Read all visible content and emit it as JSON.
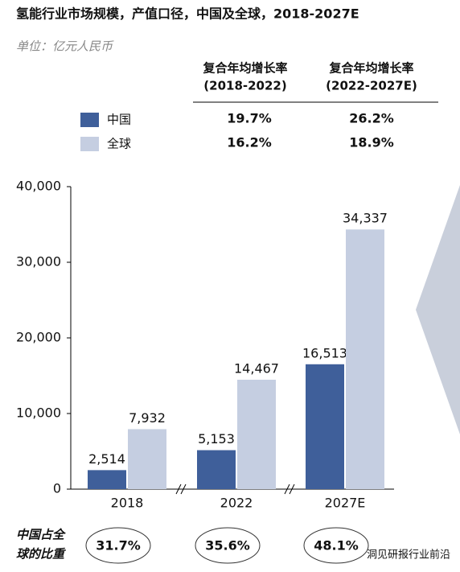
{
  "header": {
    "title": "氢能行业市场规模，产值口径，中国及全球，2018-2027E",
    "unit": "单位：亿元人民币"
  },
  "cagr": {
    "headers": [
      [
        "复合年均增长率",
        "(2018-2022)"
      ],
      [
        "复合年均增长率",
        "(2022-2027E)"
      ]
    ],
    "rows": [
      [
        "19.7%",
        "26.2%"
      ],
      [
        "16.2%",
        "18.9%"
      ]
    ]
  },
  "chart_data": {
    "type": "bar",
    "categories": [
      "2018",
      "2022",
      "2027E"
    ],
    "series": [
      {
        "name": "中国",
        "color": "#3f5f9a",
        "values": [
          2514,
          5153,
          16513
        ],
        "value_labels": [
          "2,514",
          "5,153",
          "16,513"
        ]
      },
      {
        "name": "全球",
        "color": "#c5cee1",
        "values": [
          7932,
          14467,
          34337
        ],
        "value_labels": [
          "7,932",
          "14,467",
          "34,337"
        ]
      }
    ],
    "ylim": [
      0,
      40000
    ],
    "yticks": [
      0,
      {
        "value": 10000,
        "label": "10,000"
      },
      {
        "value": 20000,
        "label": "20,000"
      },
      {
        "value": 30000,
        "label": "30,000"
      },
      {
        "value": 40000,
        "label": "40,000"
      }
    ],
    "grid": false
  },
  "share": {
    "label": [
      "中国占全",
      "球的比重"
    ],
    "values": [
      "31.7%",
      "35.6%",
      "48.1%"
    ]
  },
  "footer": "洞见研报行业前沿"
}
